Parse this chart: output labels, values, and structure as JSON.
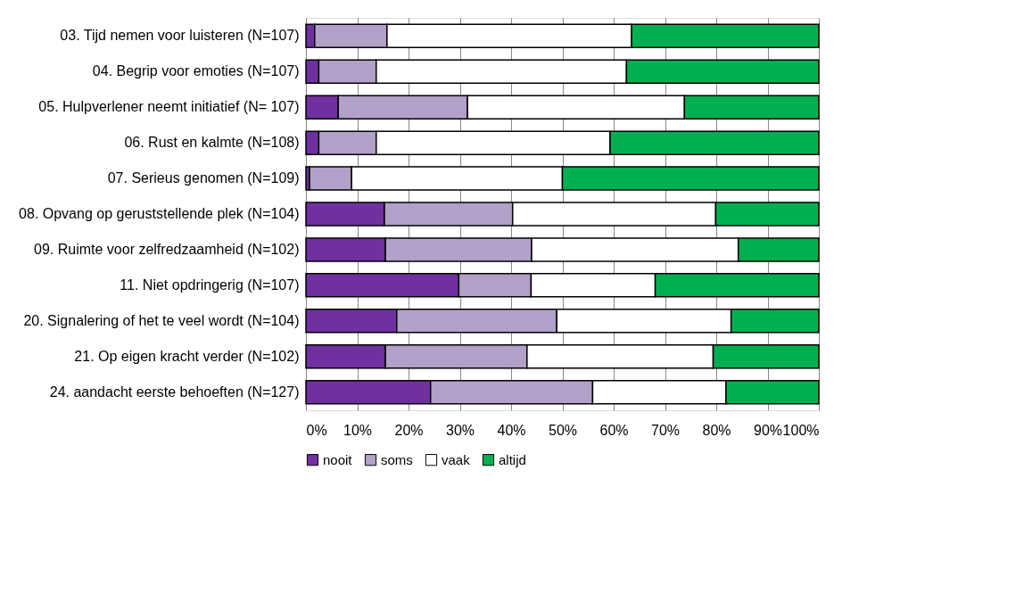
{
  "chart_data": {
    "type": "bar",
    "orientation": "horizontal",
    "stacked": true,
    "categories": [
      "03. Tijd nemen voor luisteren (N=107)",
      "04. Begrip voor emoties (N=107)",
      "05. Hulpverlener neemt initiatief (N= 107)",
      "06. Rust en kalmte  (N=108)",
      "07. Serieus genomen (N=109)",
      "08. Opvang op geruststellende plek (N=104)",
      "09. Ruimte voor zelfredzaamheid (N=102)",
      "11. Niet opdringerig (N=107)",
      "20. Signalering of het te veel wordt (N=104)",
      "21. Op eigen kracht verder (N=102)",
      "24. aandacht eerste behoeften (N=127)"
    ],
    "series": [
      {
        "name": "nooit",
        "color": "#7030a0",
        "values": [
          1.7,
          2.5,
          6.3,
          2.5,
          0.7,
          15.3,
          15.5,
          29.8,
          17.7,
          15.5,
          24.3
        ]
      },
      {
        "name": "soms",
        "color": "#b1a0c7",
        "values": [
          14.1,
          11.2,
          25.2,
          11.2,
          8.2,
          25.0,
          28.5,
          14.1,
          31.2,
          27.6,
          31.6
        ]
      },
      {
        "name": "vaak",
        "color": "#ffffff",
        "values": [
          47.7,
          48.8,
          42.3,
          45.6,
          41.1,
          39.6,
          40.3,
          24.2,
          34.0,
          36.3,
          26.0
        ]
      },
      {
        "name": "altijd",
        "color": "#00b050",
        "values": [
          36.5,
          37.5,
          26.2,
          40.7,
          50.0,
          20.1,
          15.7,
          31.9,
          17.1,
          20.6,
          18.1
        ]
      }
    ],
    "xlim": [
      0,
      100
    ],
    "xticks": [
      {
        "value": 0,
        "label": "0%"
      },
      {
        "value": 10,
        "label": "10%"
      },
      {
        "value": 20,
        "label": "20%"
      },
      {
        "value": 30,
        "label": "30%"
      },
      {
        "value": 40,
        "label": "40%"
      },
      {
        "value": 50,
        "label": "50%"
      },
      {
        "value": 60,
        "label": "60%"
      },
      {
        "value": 70,
        "label": "70%"
      },
      {
        "value": 80,
        "label": "80%"
      },
      {
        "value": 90,
        "label": "90%"
      },
      {
        "value": 100,
        "label": "100%"
      }
    ],
    "grid": "x",
    "legend": "bottom"
  }
}
